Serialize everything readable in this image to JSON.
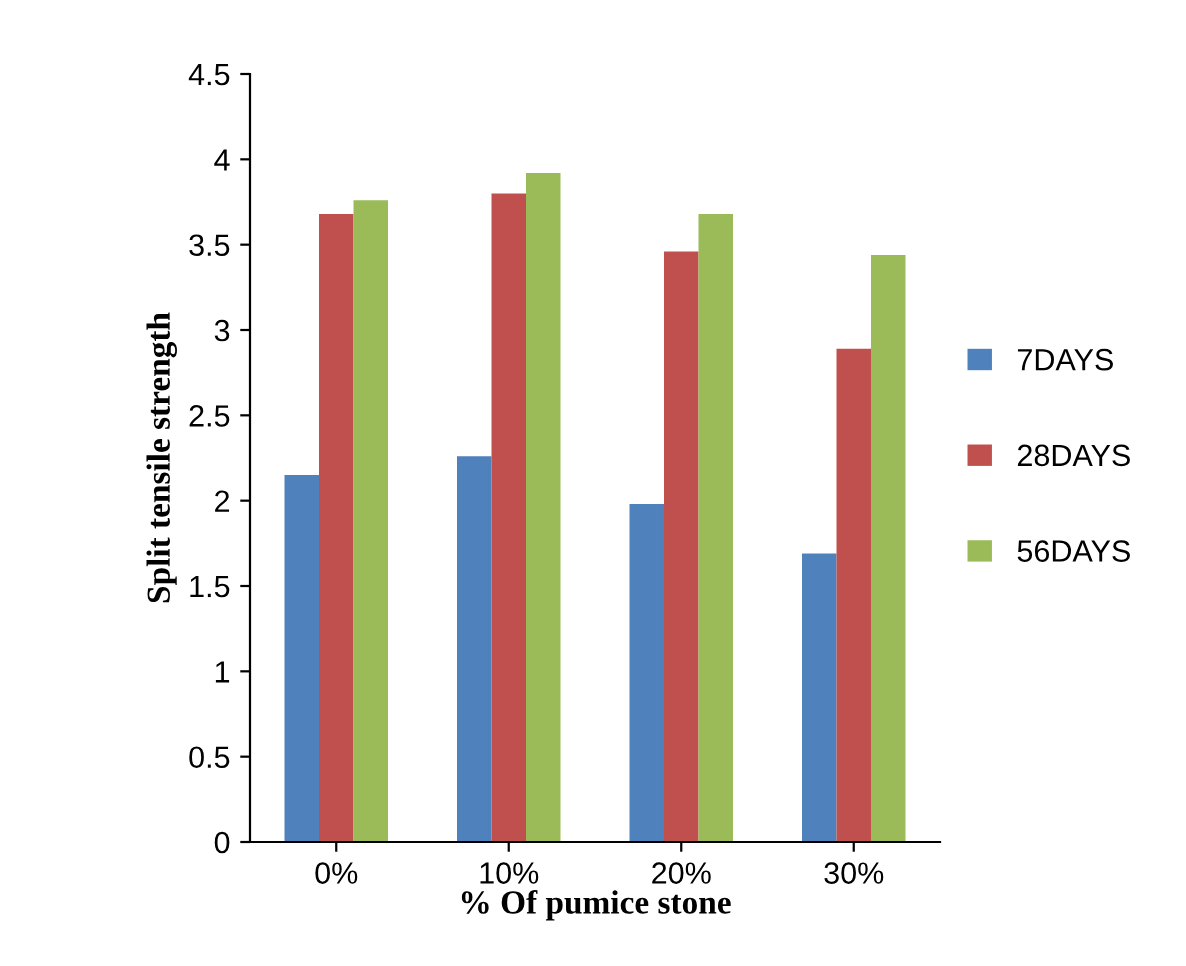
{
  "chart_data": {
    "type": "bar",
    "xlabel": "% Of pumice stone",
    "ylabel": "Split tensile strength",
    "categories": [
      "0%",
      "10%",
      "20%",
      "30%"
    ],
    "series": [
      {
        "name": "7DAYS",
        "color": "#4f81bd",
        "values": [
          2.15,
          2.26,
          1.98,
          1.69
        ]
      },
      {
        "name": "28DAYS",
        "color": "#c0504d",
        "values": [
          3.68,
          3.8,
          3.46,
          2.89
        ]
      },
      {
        "name": "56DAYS",
        "color": "#9bbb59",
        "values": [
          3.76,
          3.92,
          3.68,
          3.44
        ]
      }
    ],
    "ylim": [
      0,
      4.5
    ],
    "yticks": [
      0,
      0.5,
      1,
      1.5,
      2,
      2.5,
      3,
      3.5,
      4,
      4.5
    ],
    "grid": false,
    "legend": "right"
  }
}
